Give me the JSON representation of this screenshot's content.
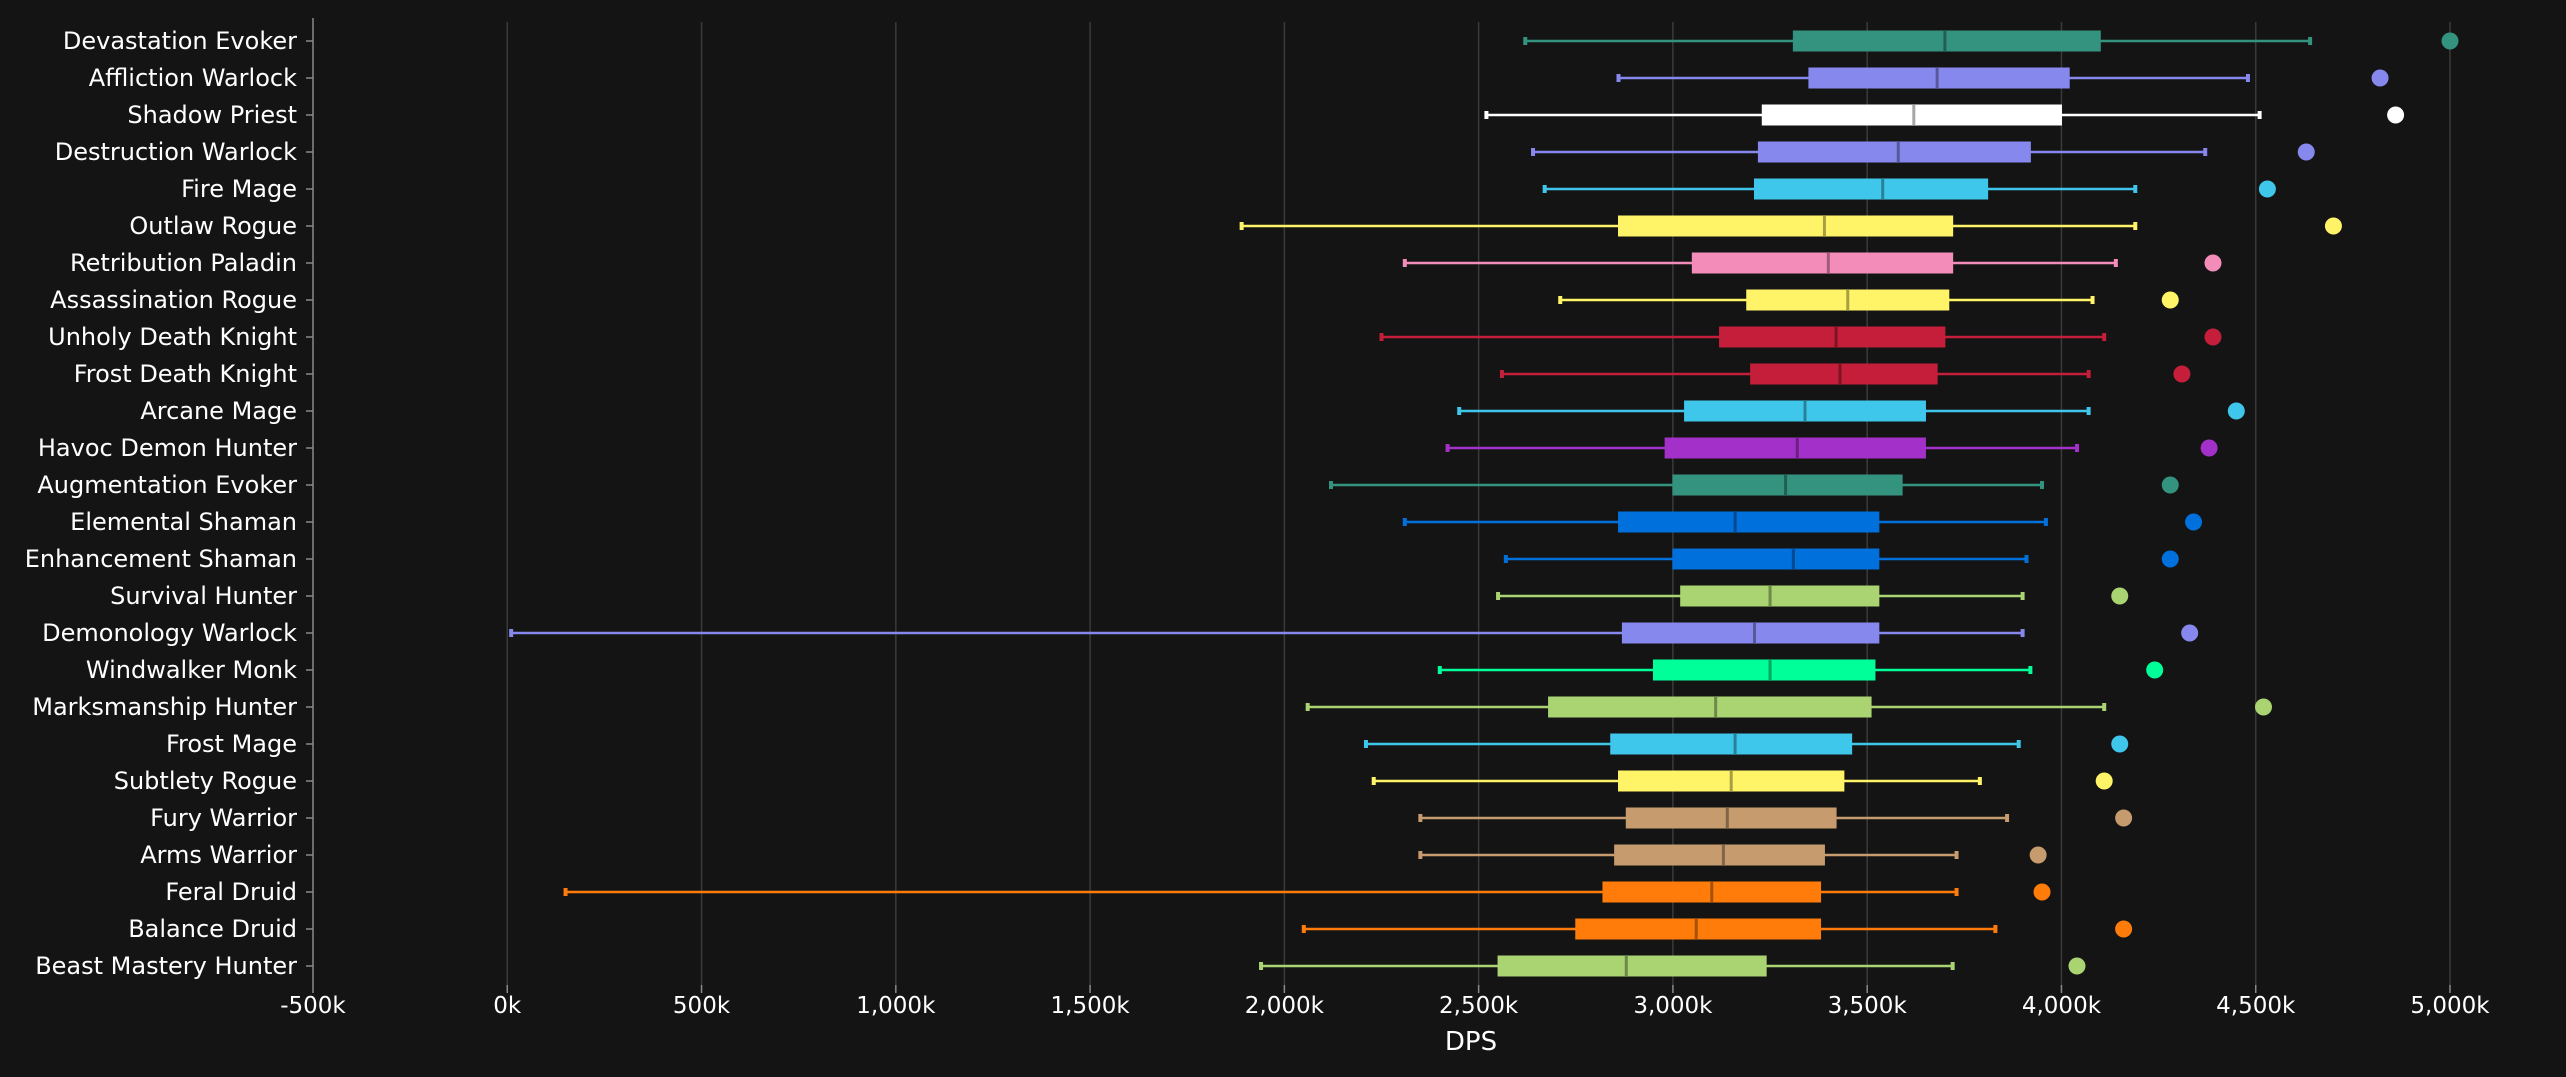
{
  "chart_data": {
    "type": "boxplot",
    "orientation": "horizontal",
    "title": "",
    "xlabel": "DPS",
    "ylabel": "",
    "xlim": [
      -500000,
      5000000
    ],
    "x_ticks": [
      -500000,
      0,
      500000,
      1000000,
      1500000,
      2000000,
      2500000,
      3000000,
      3500000,
      4000000,
      4500000,
      5000000
    ],
    "x_tick_labels": [
      "-500k",
      "0k",
      "500k",
      "1,000k",
      "1,500k",
      "2,000k",
      "2,500k",
      "3,000k",
      "3,500k",
      "4,000k",
      "4,500k",
      "5,000k"
    ],
    "grid": true,
    "legend": "none",
    "series": [
      {
        "name": "Devastation Evoker",
        "color": "#33937F",
        "min": 2620000,
        "q1": 3310000,
        "median": 3700000,
        "q3": 4100000,
        "max": 4640000,
        "outlier": 5000000
      },
      {
        "name": "Affliction Warlock",
        "color": "#8788EE",
        "min": 2860000,
        "q1": 3350000,
        "median": 3680000,
        "q3": 4020000,
        "max": 4480000,
        "outlier": 4820000
      },
      {
        "name": "Shadow Priest",
        "color": "#FFFFFF",
        "min": 2520000,
        "q1": 3230000,
        "median": 3620000,
        "q3": 4000000,
        "max": 4510000,
        "outlier": 4860000
      },
      {
        "name": "Destruction Warlock",
        "color": "#8788EE",
        "min": 2640000,
        "q1": 3220000,
        "median": 3580000,
        "q3": 3920000,
        "max": 4370000,
        "outlier": 4630000
      },
      {
        "name": "Fire Mage",
        "color": "#3FC7EB",
        "min": 2670000,
        "q1": 3210000,
        "median": 3540000,
        "q3": 3810000,
        "max": 4190000,
        "outlier": 4530000
      },
      {
        "name": "Outlaw Rogue",
        "color": "#FFF468",
        "min": 1890000,
        "q1": 2860000,
        "median": 3390000,
        "q3": 3720000,
        "max": 4190000,
        "outlier": 4700000
      },
      {
        "name": "Retribution Paladin",
        "color": "#F48CBA",
        "min": 2310000,
        "q1": 3050000,
        "median": 3400000,
        "q3": 3720000,
        "max": 4140000,
        "outlier": 4390000
      },
      {
        "name": "Assassination Rogue",
        "color": "#FFF468",
        "min": 2710000,
        "q1": 3190000,
        "median": 3450000,
        "q3": 3710000,
        "max": 4080000,
        "outlier": 4280000
      },
      {
        "name": "Unholy Death Knight",
        "color": "#C41E3A",
        "min": 2250000,
        "q1": 3120000,
        "median": 3420000,
        "q3": 3700000,
        "max": 4110000,
        "outlier": 4390000
      },
      {
        "name": "Frost Death Knight",
        "color": "#C41E3A",
        "min": 2560000,
        "q1": 3200000,
        "median": 3430000,
        "q3": 3680000,
        "max": 4070000,
        "outlier": 4310000
      },
      {
        "name": "Arcane Mage",
        "color": "#3FC7EB",
        "min": 2450000,
        "q1": 3030000,
        "median": 3340000,
        "q3": 3650000,
        "max": 4070000,
        "outlier": 4450000
      },
      {
        "name": "Havoc Demon Hunter",
        "color": "#A330C9",
        "min": 2420000,
        "q1": 2980000,
        "median": 3320000,
        "q3": 3650000,
        "max": 4040000,
        "outlier": 4380000
      },
      {
        "name": "Augmentation Evoker",
        "color": "#33937F",
        "min": 2120000,
        "q1": 3000000,
        "median": 3290000,
        "q3": 3590000,
        "max": 3950000,
        "outlier": 4280000
      },
      {
        "name": "Elemental Shaman",
        "color": "#0070DD",
        "min": 2310000,
        "q1": 2860000,
        "median": 3160000,
        "q3": 3530000,
        "max": 3960000,
        "outlier": 4340000
      },
      {
        "name": "Enhancement Shaman",
        "color": "#0070DD",
        "min": 2570000,
        "q1": 3000000,
        "median": 3310000,
        "q3": 3530000,
        "max": 3910000,
        "outlier": 4280000
      },
      {
        "name": "Survival Hunter",
        "color": "#AAD372",
        "min": 2550000,
        "q1": 3020000,
        "median": 3250000,
        "q3": 3530000,
        "max": 3900000,
        "outlier": 4150000
      },
      {
        "name": "Demonology Warlock",
        "color": "#8788EE",
        "min": 10000,
        "q1": 2870000,
        "median": 3210000,
        "q3": 3530000,
        "max": 3900000,
        "outlier": 4330000
      },
      {
        "name": "Windwalker Monk",
        "color": "#00FF98",
        "min": 2400000,
        "q1": 2950000,
        "median": 3250000,
        "q3": 3520000,
        "max": 3920000,
        "outlier": 4240000
      },
      {
        "name": "Marksmanship Hunter",
        "color": "#AAD372",
        "min": 2060000,
        "q1": 2680000,
        "median": 3110000,
        "q3": 3510000,
        "max": 4110000,
        "outlier": 4520000
      },
      {
        "name": "Frost Mage",
        "color": "#3FC7EB",
        "min": 2210000,
        "q1": 2840000,
        "median": 3160000,
        "q3": 3460000,
        "max": 3890000,
        "outlier": 4150000
      },
      {
        "name": "Subtlety Rogue",
        "color": "#FFF468",
        "min": 2230000,
        "q1": 2860000,
        "median": 3150000,
        "q3": 3440000,
        "max": 3790000,
        "outlier": 4110000
      },
      {
        "name": "Fury Warrior",
        "color": "#C69B6D",
        "min": 2350000,
        "q1": 2880000,
        "median": 3140000,
        "q3": 3420000,
        "max": 3860000,
        "outlier": 4160000
      },
      {
        "name": "Arms Warrior",
        "color": "#C69B6D",
        "min": 2350000,
        "q1": 2850000,
        "median": 3130000,
        "q3": 3390000,
        "max": 3730000,
        "outlier": 3940000
      },
      {
        "name": "Feral Druid",
        "color": "#FF7C0A",
        "min": 150000,
        "q1": 2820000,
        "median": 3100000,
        "q3": 3380000,
        "max": 3730000,
        "outlier": 3950000
      },
      {
        "name": "Balance Druid",
        "color": "#FF7C0A",
        "min": 2050000,
        "q1": 2750000,
        "median": 3060000,
        "q3": 3380000,
        "max": 3830000,
        "outlier": 4160000
      },
      {
        "name": "Beast Mastery Hunter",
        "color": "#AAD372",
        "min": 1940000,
        "q1": 2550000,
        "median": 2880000,
        "q3": 3240000,
        "max": 3720000,
        "outlier": 4040000
      }
    ]
  }
}
